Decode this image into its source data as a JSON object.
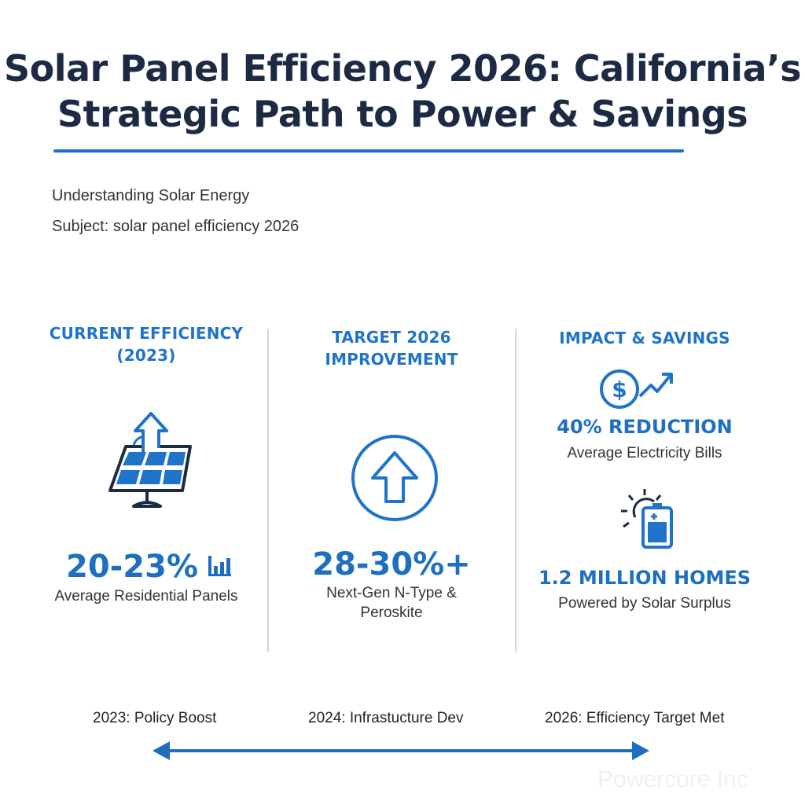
{
  "title": {
    "line1": "Solar Panel Efficiency 2026: California’s",
    "line2": "Strategic Path to Power & Savings"
  },
  "intro": {
    "heading": "Understanding Solar Energy",
    "subject": "Subject: solar panel efficiency 2026"
  },
  "columns": [
    {
      "heading_line1": "CURRENT EFFICIENCY",
      "heading_line2": "(2023)",
      "icon": "solar-panel-arrow-icon",
      "stat": "20-23%",
      "stat_icon": "bar-chart-icon",
      "caption": "Average Residential Panels"
    },
    {
      "heading_line1": "TARGET 2026",
      "heading_line2": "IMPROVEMENT",
      "icon": "circle-up-arrow-icon",
      "stat": "28-30%+",
      "caption_line1": "Next-Gen N-Type &",
      "caption_line2": "Peroskite"
    },
    {
      "heading": "IMPACT & SAVINGS",
      "items": [
        {
          "icon": "dollar-trend-icon",
          "stat": "40% REDUCTION",
          "caption": "Average Electricity Bills"
        },
        {
          "icon": "sun-battery-icon",
          "stat": "1.2 MILLION HOMES",
          "caption": "Powered by Solar Surplus"
        }
      ]
    }
  ],
  "timeline": {
    "icon": "double-arrow-icon",
    "milestones": [
      "2023: Policy Boost",
      "2024: Infrastucture Dev",
      "2026: Efficiency Target Met"
    ]
  },
  "watermark": "Powercore Inc",
  "colors": {
    "accent": "#1f6fc0",
    "title": "#1c2a44",
    "rule": "#1a6fd0"
  }
}
